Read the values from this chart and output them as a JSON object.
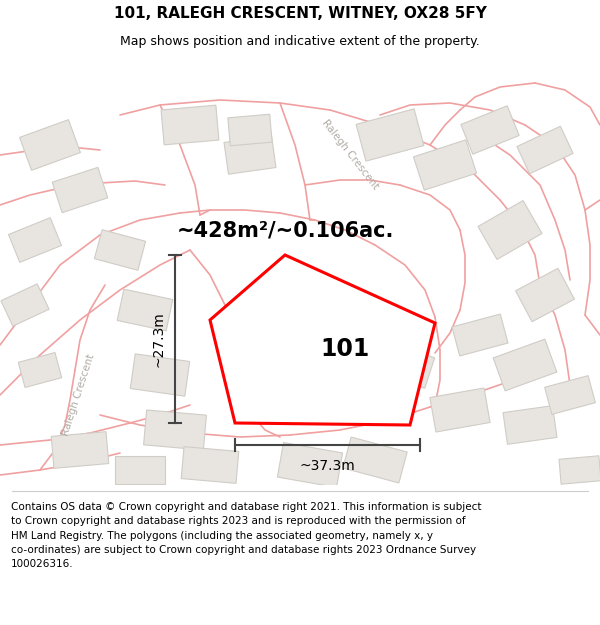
{
  "title_line1": "101, RALEGH CRESCENT, WITNEY, OX28 5FY",
  "title_line2": "Map shows position and indicative extent of the property.",
  "area_text": "~428m²/~0.106ac.",
  "property_label": "101",
  "dim_v": "~27.3m",
  "dim_h": "~37.3m",
  "footer": "Contains OS data © Crown copyright and database right 2021. This information is subject\nto Crown copyright and database rights 2023 and is reproduced with the permission of\nHM Land Registry. The polygons (including the associated geometry, namely x, y\nco-ordinates) are subject to Crown copyright and database rights 2023 Ordnance Survey\n100026316.",
  "bg_color": "#ffffff",
  "map_bg": "#f5f4f2",
  "plot_color": "#ff0000",
  "plot_fill": "#ffffff",
  "road_color": "#f0a0a0",
  "building_fill": "#e8e5e1",
  "building_edge": "#d0ccc6",
  "dim_color": "#444444",
  "street_label_color": "#b0aba5",
  "title_fontsize": 11,
  "subtitle_fontsize": 9,
  "area_fontsize": 15,
  "label_fontsize": 17,
  "dim_fontsize": 10,
  "footer_fontsize": 7.5
}
